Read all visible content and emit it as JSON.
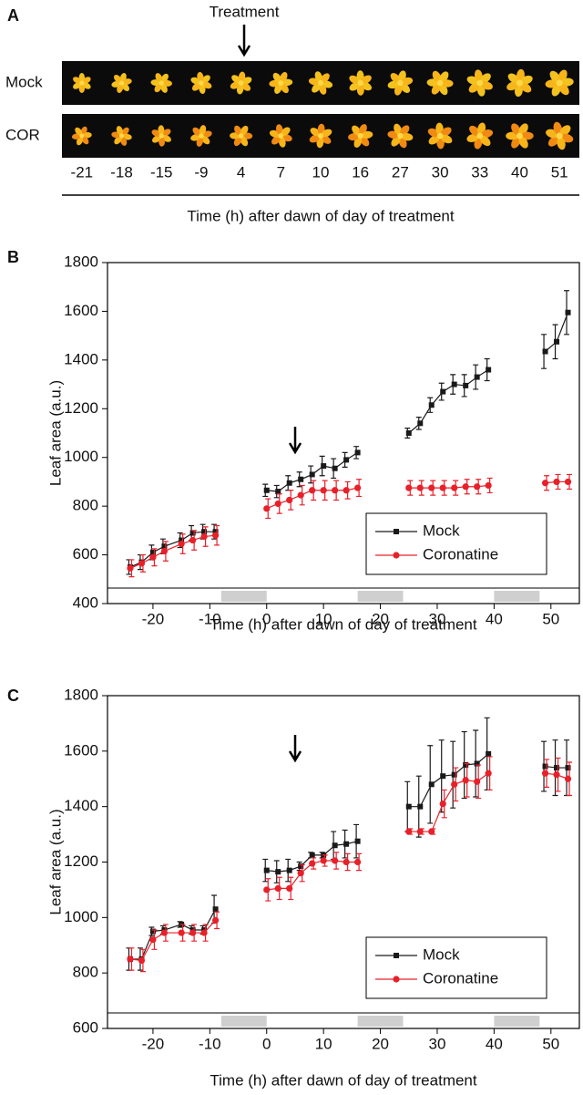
{
  "panel_a": {
    "panel_label": "A",
    "treatment_label": "Treatment",
    "row_labels": [
      "Mock",
      "COR"
    ],
    "times": [
      -21,
      -18,
      -15,
      -9,
      4,
      7,
      10,
      16,
      27,
      30,
      33,
      40,
      51
    ],
    "xlabel": "Time (h) after dawn of day of treatment"
  },
  "chart_data": [
    {
      "type": "line",
      "panel_label": "B",
      "xlabel": "Time (h) after dawn of day of treatment",
      "ylabel": "Leaf area (a.u.)",
      "x": [
        -24,
        -22,
        -20,
        -18,
        -15,
        -13,
        -11,
        -9,
        -4,
        0,
        2,
        4,
        6,
        8,
        10,
        12,
        14,
        16,
        20,
        25,
        27,
        29,
        31,
        33,
        35,
        37,
        39,
        44,
        49,
        51,
        53
      ],
      "series": [
        {
          "name": "Mock",
          "color": "#1a1a1a",
          "marker": "square",
          "values": [
            550,
            570,
            610,
            635,
            660,
            690,
            695,
            695,
            null,
            865,
            860,
            895,
            910,
            930,
            965,
            955,
            990,
            1020,
            null,
            1100,
            1140,
            1215,
            1270,
            1300,
            1295,
            1330,
            1360,
            null,
            1435,
            1475,
            1595
          ],
          "errors": [
            30,
            30,
            30,
            30,
            30,
            30,
            30,
            30,
            null,
            25,
            25,
            30,
            30,
            35,
            40,
            40,
            30,
            25,
            null,
            20,
            25,
            30,
            35,
            40,
            45,
            50,
            45,
            null,
            70,
            70,
            90
          ]
        },
        {
          "name": "Coronatine",
          "color": "#e8202a",
          "marker": "circle",
          "values": [
            545,
            565,
            590,
            615,
            645,
            660,
            675,
            680,
            null,
            790,
            810,
            825,
            845,
            865,
            865,
            865,
            865,
            875,
            null,
            875,
            875,
            875,
            875,
            875,
            880,
            880,
            885,
            null,
            895,
            900,
            900
          ],
          "errors": [
            35,
            35,
            35,
            40,
            40,
            40,
            40,
            40,
            null,
            40,
            40,
            40,
            40,
            40,
            40,
            40,
            35,
            35,
            null,
            30,
            30,
            30,
            30,
            30,
            30,
            30,
            30,
            null,
            30,
            30,
            30
          ]
        }
      ],
      "xlim": [
        -28,
        55
      ],
      "xticks": [
        -20,
        -10,
        0,
        10,
        20,
        30,
        40,
        50
      ],
      "ylim": [
        400,
        1800
      ],
      "yticks": [
        400,
        600,
        800,
        1000,
        1200,
        1400,
        1600,
        1800
      ],
      "night_intervals": [
        [
          -8,
          0
        ],
        [
          16,
          24
        ],
        [
          40,
          48
        ]
      ],
      "legend": "lower right"
    },
    {
      "type": "line",
      "panel_label": "C",
      "xlabel": "Time (h) after dawn of day of treatment",
      "ylabel": "Leaf area (a.u.)",
      "x": [
        -24,
        -22,
        -20,
        -18,
        -15,
        -13,
        -11,
        -9,
        -4,
        0,
        2,
        4,
        6,
        8,
        10,
        12,
        14,
        16,
        20,
        25,
        27,
        29,
        31,
        33,
        35,
        37,
        39,
        44,
        49,
        51,
        53
      ],
      "series": [
        {
          "name": "Mock",
          "color": "#1a1a1a",
          "marker": "square",
          "values": [
            850,
            850,
            950,
            955,
            975,
            955,
            955,
            1030,
            null,
            1170,
            1165,
            1170,
            1185,
            1225,
            1225,
            1260,
            1265,
            1275,
            null,
            1400,
            1400,
            1480,
            1510,
            1515,
            1550,
            1555,
            1590,
            null,
            1545,
            1540,
            1540
          ],
          "errors": [
            40,
            40,
            15,
            15,
            10,
            15,
            15,
            50,
            null,
            40,
            40,
            40,
            15,
            10,
            10,
            50,
            50,
            60,
            null,
            90,
            110,
            140,
            130,
            120,
            120,
            120,
            130,
            null,
            90,
            100,
            100
          ]
        },
        {
          "name": "Coronatine",
          "color": "#e8202a",
          "marker": "circle",
          "values": [
            850,
            845,
            920,
            945,
            945,
            945,
            945,
            990,
            null,
            1100,
            1105,
            1105,
            1160,
            1195,
            1205,
            1205,
            1200,
            1200,
            null,
            1310,
            1310,
            1310,
            1410,
            1480,
            1495,
            1490,
            1520,
            null,
            1520,
            1515,
            1500
          ],
          "errors": [
            40,
            40,
            35,
            30,
            30,
            30,
            30,
            30,
            null,
            40,
            40,
            40,
            30,
            20,
            20,
            30,
            30,
            30,
            null,
            10,
            10,
            10,
            50,
            60,
            60,
            60,
            60,
            null,
            50,
            60,
            60
          ]
        }
      ],
      "xlim": [
        -28,
        55
      ],
      "xticks": [
        -20,
        -10,
        0,
        10,
        20,
        30,
        40,
        50
      ],
      "ylim": [
        600,
        1800
      ],
      "yticks": [
        600,
        800,
        1000,
        1200,
        1400,
        1600,
        1800
      ],
      "night_intervals": [
        [
          -8,
          0
        ],
        [
          16,
          24
        ],
        [
          40,
          48
        ]
      ],
      "legend": "lower right"
    }
  ]
}
